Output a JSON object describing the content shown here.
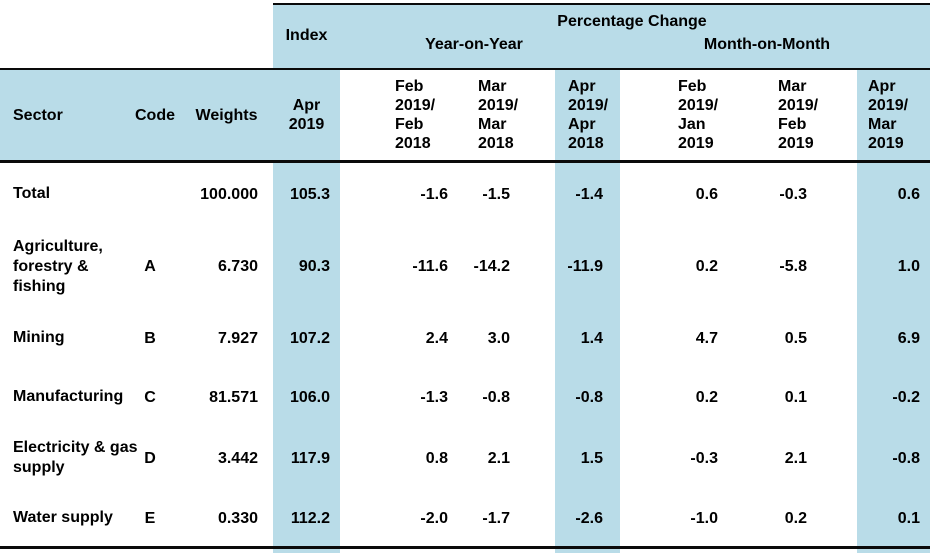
{
  "colors": {
    "highlight_blue": "#B9DCE8",
    "rule_black": "#0a0a0a",
    "text": "#000000",
    "background": "#ffffff"
  },
  "table": {
    "group_headers": {
      "index_group": "Index",
      "percentage_change": "Percentage Change",
      "year_on_year": "Year-on-Year",
      "month_on_month": "Month-on-Month"
    },
    "headers": {
      "sector": "Sector",
      "code": "Code",
      "weights": "Weights",
      "index_period": "Apr\n2019",
      "yoy_feb": "Feb\n2019/\nFeb\n2018",
      "yoy_mar": "Mar\n2019/\nMar\n2018",
      "yoy_apr": "Apr\n2019/\nApr\n2018",
      "mom_feb": "Feb\n2019/\nJan\n2019",
      "mom_mar": "Mar\n2019/\nFeb\n2019",
      "mom_apr": "Apr\n2019/\nMar\n2019"
    },
    "rows": [
      [
        "Total",
        "",
        "100.000",
        "105.3",
        "-1.6",
        "-1.5",
        "-1.4",
        "0.6",
        "-0.3",
        "0.6"
      ],
      [
        "Agriculture,\nforestry &\nfishing",
        "A",
        "6.730",
        "90.3",
        "-11.6",
        "-14.2",
        "-11.9",
        "0.2",
        "-5.8",
        "1.0"
      ],
      [
        "Mining",
        "B",
        "7.927",
        "107.2",
        "2.4",
        "3.0",
        "1.4",
        "4.7",
        "0.5",
        "6.9"
      ],
      [
        "Manufacturing",
        "C",
        "81.571",
        "106.0",
        "-1.3",
        "-0.8",
        "-0.8",
        "0.2",
        "0.1",
        "-0.2"
      ],
      [
        "Electricity & gas\nsupply",
        "D",
        "3.442",
        "117.9",
        "0.8",
        "2.1",
        "1.5",
        "-0.3",
        "2.1",
        "-0.8"
      ],
      [
        "Water supply",
        "E",
        "0.330",
        "112.2",
        "-2.0",
        "-1.7",
        "-2.6",
        "-1.0",
        "0.2",
        "0.1"
      ]
    ]
  }
}
